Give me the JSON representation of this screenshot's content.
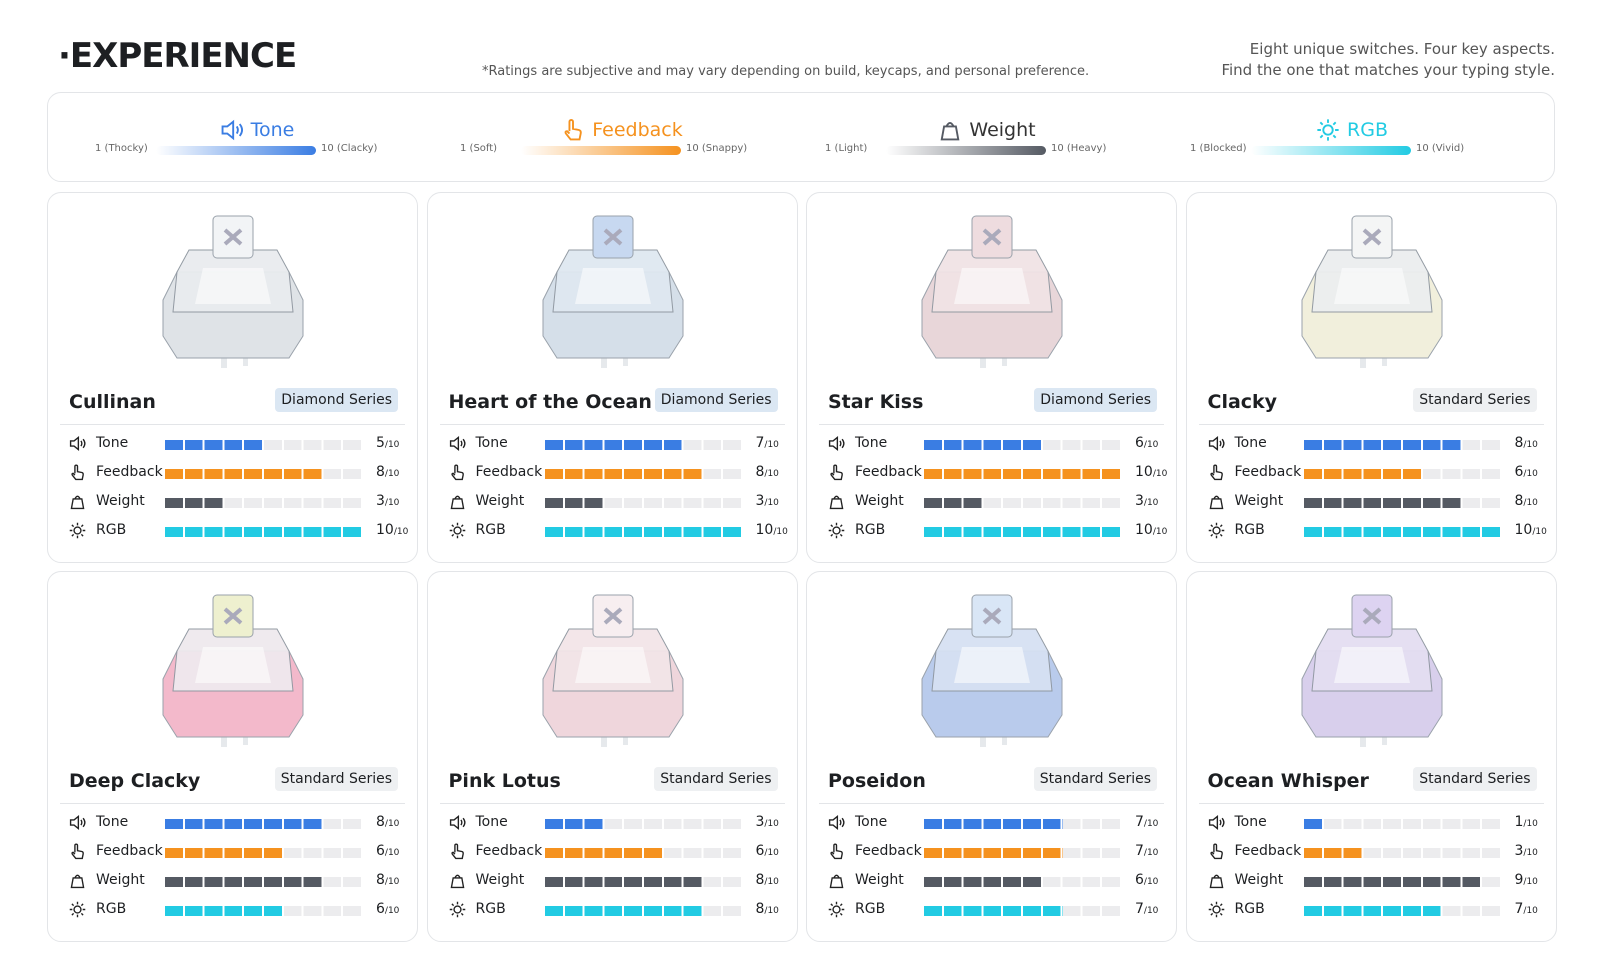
{
  "header": {
    "title": "·EXPERIENCE",
    "note": "*Ratings are subjective and may vary depending on build, keycaps, and personal preference.",
    "tagline": [
      "Eight unique switches. Four key aspects.",
      "Find the one that matches your typing style."
    ]
  },
  "scale": {
    "max": 10,
    "suffix": "/10"
  },
  "metrics": [
    {
      "name": "Tone",
      "color": "#3a7de3",
      "low": "1 (Thocky)",
      "high": "10 (Clacky)"
    },
    {
      "name": "Feedback",
      "color": "#f5921f",
      "low": "1 (Soft)",
      "high": "10 (Snappy)"
    },
    {
      "name": "Weight",
      "color": "#555a63",
      "low": "1 (Light)",
      "high": "10 (Heavy)"
    },
    {
      "name": "RGB",
      "color": "#22cbe3",
      "low": "1 (Blocked)",
      "high": "10 (Vivid)"
    }
  ],
  "switches": [
    {
      "name": "Cullinan",
      "series": "Diamond Series",
      "tag_color": "#dbe7f3",
      "ratings": [
        5,
        8,
        3,
        10
      ],
      "colors": {
        "stem": "#f2f4f6",
        "top": "#e9ecef",
        "bottom": "#dfe3e7"
      }
    },
    {
      "name": "Heart of the Ocean",
      "series": "Diamond Series",
      "tag_color": "#dbe7f3",
      "ratings": [
        7,
        8,
        3,
        10
      ],
      "colors": {
        "stem": "#c7d8f0",
        "top": "#dfe8f1",
        "bottom": "#d5dfe9"
      }
    },
    {
      "name": "Star Kiss",
      "series": "Diamond Series",
      "tag_color": "#dbe7f3",
      "ratings": [
        6,
        10,
        3,
        10
      ],
      "colors": {
        "stem": "#eedcdf",
        "top": "#f1e3e5",
        "bottom": "#e8d6d9"
      }
    },
    {
      "name": "Clacky",
      "series": "Standard Series",
      "tag_color": "#eef0f2",
      "ratings": [
        8,
        6,
        8,
        10
      ],
      "colors": {
        "stem": "#f4f5f5",
        "top": "#eceeef",
        "bottom": "#f1efdc"
      }
    },
    {
      "name": "Deep Clacky",
      "series": "Standard Series",
      "tag_color": "#eef0f2",
      "ratings": [
        8,
        6,
        8,
        6
      ],
      "colors": {
        "stem": "#eef0cf",
        "top": "#efe9ee",
        "bottom": "#f3b9cb"
      }
    },
    {
      "name": "Pink Lotus",
      "series": "Standard Series",
      "tag_color": "#eef0f2",
      "ratings": [
        3,
        6,
        8,
        8
      ],
      "colors": {
        "stem": "#f7eef0",
        "top": "#f3e5e8",
        "bottom": "#efd6dc"
      }
    },
    {
      "name": "Poseidon",
      "series": "Standard Series",
      "tag_color": "#eef0f2",
      "ratings": [
        7,
        7,
        6,
        7
      ],
      "colors": {
        "stem": "#d9e6f6",
        "top": "#d6e1f3",
        "bottom": "#b9cbec"
      }
    },
    {
      "name": "Ocean Whisper",
      "series": "Standard Series",
      "tag_color": "#eef0f2",
      "ratings": [
        1,
        3,
        9,
        7
      ],
      "colors": {
        "stem": "#ddd3f1",
        "top": "#e4def2",
        "bottom": "#d8cfec"
      }
    }
  ]
}
